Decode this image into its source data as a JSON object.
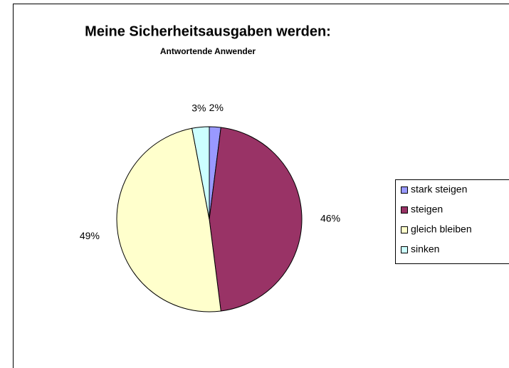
{
  "chart_data": {
    "type": "pie",
    "title": "Meine Sicherheitsausgaben werden:",
    "subtitle": "Antwortende Anwender",
    "categories": [
      "stark steigen",
      "steigen",
      "gleich bleiben",
      "sinken"
    ],
    "values": [
      2,
      46,
      49,
      3
    ],
    "value_labels": [
      "2%",
      "46%",
      "49%",
      "3%"
    ],
    "colors": [
      "#9999ff",
      "#993366",
      "#ffffcc",
      "#ccffff"
    ],
    "legend": "right"
  }
}
